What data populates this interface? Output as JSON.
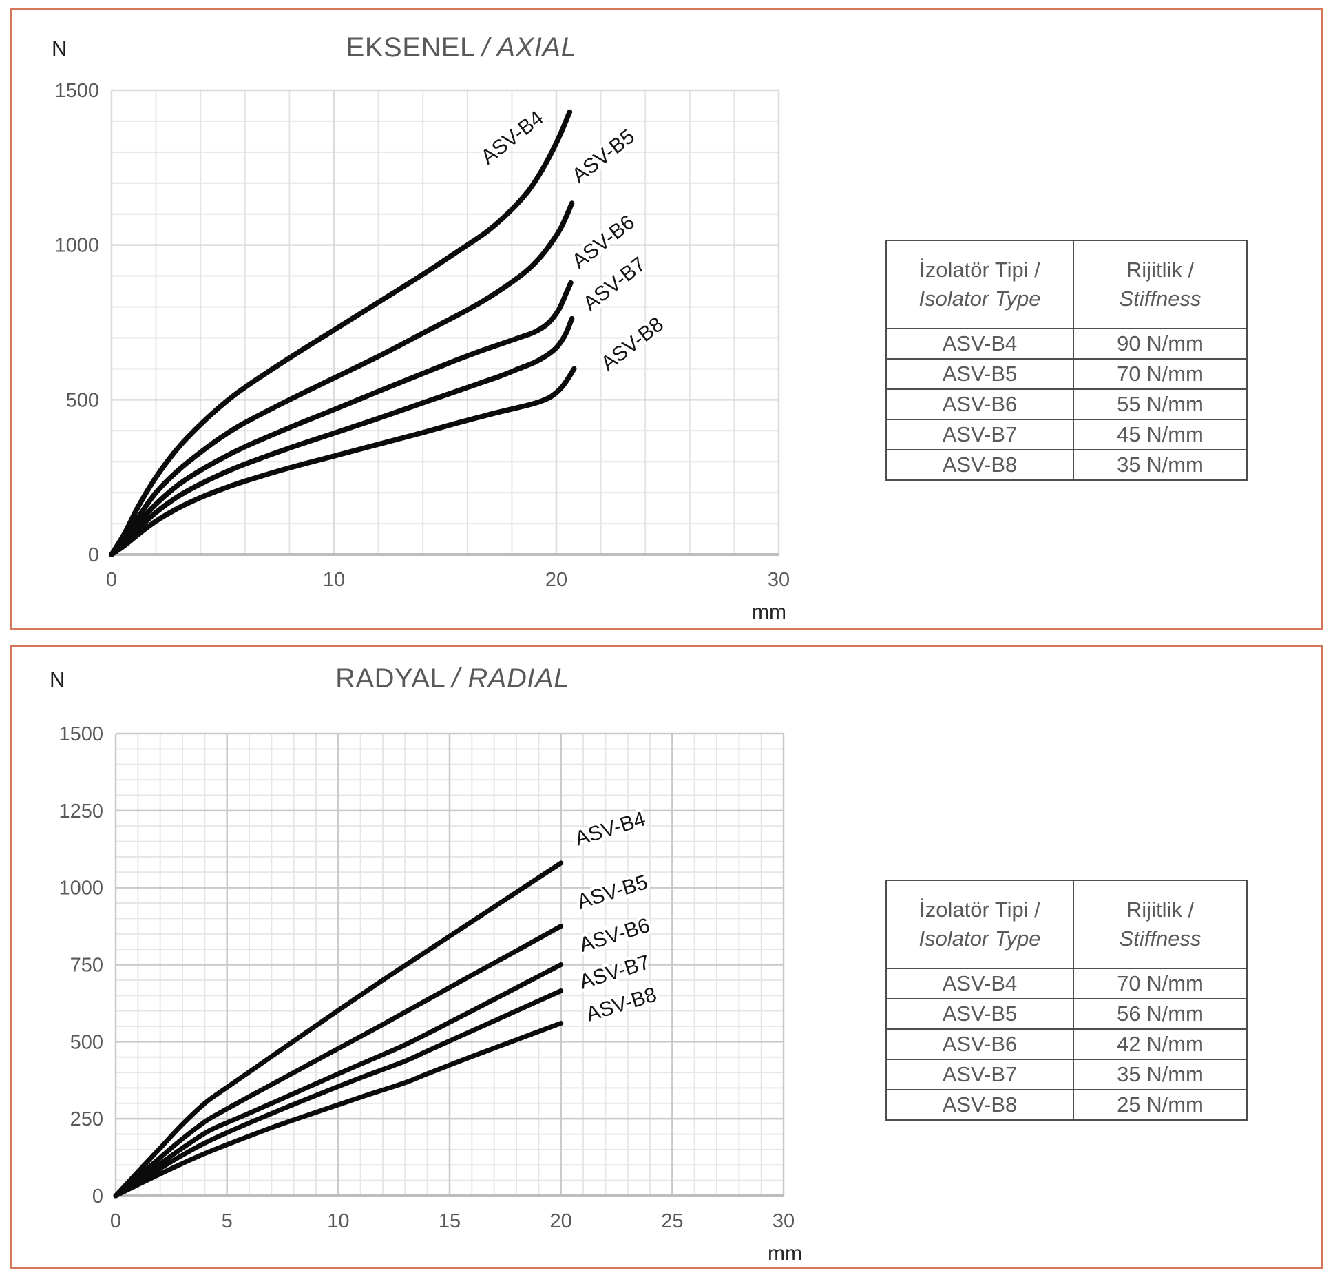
{
  "accent_border_color": "#D3765A",
  "text_gray": "#595959",
  "panels": [
    {
      "title_main": "EKSENEL",
      "title_italic": "/ AXIAL"
    },
    {
      "title_main": "RADYAL",
      "title_italic": "/ RADIAL"
    }
  ],
  "tables": [
    {
      "header": [
        {
          "line1": "İzolatör Tipi /",
          "line2": "Isolator Type"
        },
        {
          "line1": "Rijitlik /",
          "line2": "Stiffness"
        }
      ],
      "rows": [
        [
          "ASV-B4",
          "90 N/mm"
        ],
        [
          "ASV-B5",
          "70 N/mm"
        ],
        [
          "ASV-B6",
          "55 N/mm"
        ],
        [
          "ASV-B7",
          "45 N/mm"
        ],
        [
          "ASV-B8",
          "35 N/mm"
        ]
      ]
    },
    {
      "header": [
        {
          "line1": "İzolatör Tipi /",
          "line2": "Isolator Type"
        },
        {
          "line1": "Rijitlik /",
          "line2": "Stiffness"
        }
      ],
      "rows": [
        [
          "ASV-B4",
          "70 N/mm"
        ],
        [
          "ASV-B5",
          "56 N/mm"
        ],
        [
          "ASV-B6",
          "42 N/mm"
        ],
        [
          "ASV-B7",
          "35 N/mm"
        ],
        [
          "ASV-B8",
          "25 N/mm"
        ]
      ]
    }
  ],
  "chart_data": [
    {
      "type": "line",
      "title": "EKSENEL / AXIAL",
      "xlabel": "mm",
      "ylabel": "N",
      "xlim": [
        0,
        30
      ],
      "ylim": [
        0,
        1500
      ],
      "x_ticks": [
        0,
        10,
        20,
        30
      ],
      "y_ticks": [
        0,
        500,
        1000,
        1500
      ],
      "x_minor": 2,
      "y_minor": 100,
      "grid": true,
      "legend_position": "inline-labels",
      "series": [
        {
          "name": "ASV-B4",
          "points": [
            [
              0,
              0
            ],
            [
              0.6,
              70
            ],
            [
              1.2,
              155
            ],
            [
              2,
              250
            ],
            [
              3,
              345
            ],
            [
              4,
              420
            ],
            [
              5,
              485
            ],
            [
              6,
              540
            ],
            [
              8,
              635
            ],
            [
              10,
              725
            ],
            [
              12,
              815
            ],
            [
              14,
              905
            ],
            [
              16,
              1000
            ],
            [
              17,
              1050
            ],
            [
              18,
              1115
            ],
            [
              18.8,
              1180
            ],
            [
              19.5,
              1260
            ],
            [
              20.1,
              1345
            ],
            [
              20.6,
              1430
            ]
          ]
        },
        {
          "name": "ASV-B5",
          "points": [
            [
              0,
              0
            ],
            [
              0.6,
              55
            ],
            [
              1.2,
              120
            ],
            [
              2,
              200
            ],
            [
              3,
              272
            ],
            [
              4,
              330
            ],
            [
              5,
              382
            ],
            [
              6,
              426
            ],
            [
              8,
              500
            ],
            [
              10,
              570
            ],
            [
              12,
              640
            ],
            [
              14,
              715
            ],
            [
              16,
              790
            ],
            [
              17,
              832
            ],
            [
              18,
              880
            ],
            [
              18.8,
              925
            ],
            [
              19.5,
              980
            ],
            [
              20.2,
              1055
            ],
            [
              20.7,
              1135
            ]
          ]
        },
        {
          "name": "ASV-B6",
          "points": [
            [
              0,
              0
            ],
            [
              0.6,
              45
            ],
            [
              1.2,
              100
            ],
            [
              2,
              163
            ],
            [
              3,
              225
            ],
            [
              4,
              272
            ],
            [
              5,
              312
            ],
            [
              6,
              348
            ],
            [
              8,
              410
            ],
            [
              10,
              468
            ],
            [
              12,
              527
            ],
            [
              14,
              585
            ],
            [
              15.5,
              628
            ],
            [
              16.5,
              655
            ],
            [
              17.5,
              680
            ],
            [
              18.3,
              700
            ],
            [
              19,
              718
            ],
            [
              19.6,
              745
            ],
            [
              20.1,
              790
            ],
            [
              20.45,
              845
            ],
            [
              20.65,
              878
            ]
          ]
        },
        {
          "name": "ASV-B7",
          "points": [
            [
              0,
              0
            ],
            [
              0.6,
              38
            ],
            [
              1.2,
              82
            ],
            [
              2,
              136
            ],
            [
              3,
              188
            ],
            [
              4,
              228
            ],
            [
              5,
              262
            ],
            [
              6,
              292
            ],
            [
              8,
              344
            ],
            [
              10,
              392
            ],
            [
              12,
              440
            ],
            [
              14,
              490
            ],
            [
              15.5,
              527
            ],
            [
              16.5,
              552
            ],
            [
              17.5,
              577
            ],
            [
              18.3,
              600
            ],
            [
              19,
              620
            ],
            [
              19.5,
              640
            ],
            [
              20,
              668
            ],
            [
              20.4,
              710
            ],
            [
              20.7,
              762
            ]
          ]
        },
        {
          "name": "ASV-B8",
          "points": [
            [
              0,
              0
            ],
            [
              0.6,
              30
            ],
            [
              1.2,
              65
            ],
            [
              2,
              108
            ],
            [
              3,
              150
            ],
            [
              4,
              184
            ],
            [
              5,
              212
            ],
            [
              6,
              237
            ],
            [
              8,
              280
            ],
            [
              10,
              318
            ],
            [
              12,
              356
            ],
            [
              14,
              394
            ],
            [
              15.5,
              424
            ],
            [
              16.5,
              443
            ],
            [
              17.3,
              458
            ],
            [
              18,
              470
            ],
            [
              18.7,
              482
            ],
            [
              19.3,
              495
            ],
            [
              19.8,
              512
            ],
            [
              20.3,
              545
            ],
            [
              20.8,
              600
            ]
          ]
        }
      ],
      "labels": [
        {
          "text": "ASV-B4",
          "x": 18.2,
          "y": 1330,
          "angle": -38
        },
        {
          "text": "ASV-B5",
          "x": 22.3,
          "y": 1270,
          "angle": -38
        },
        {
          "text": "ASV-B6",
          "x": 22.3,
          "y": 993,
          "angle": -38
        },
        {
          "text": "ASV-B7",
          "x": 22.8,
          "y": 857,
          "angle": -38
        },
        {
          "text": "ASV-B8",
          "x": 23.6,
          "y": 663,
          "angle": -38
        }
      ]
    },
    {
      "type": "line",
      "title": "RADYAL / RADIAL",
      "xlabel": "mm",
      "ylabel": "N",
      "xlim": [
        0,
        30
      ],
      "ylim": [
        0,
        1500
      ],
      "x_ticks": [
        0,
        5,
        10,
        15,
        20,
        25,
        30
      ],
      "y_ticks": [
        0,
        250,
        500,
        750,
        1000,
        1250,
        1500
      ],
      "x_minor": 1,
      "y_minor": 50,
      "grid": true,
      "legend_position": "inline-labels",
      "series": [
        {
          "name": "ASV-B4",
          "points": [
            [
              0,
              0
            ],
            [
              1,
              78
            ],
            [
              2,
              155
            ],
            [
              3,
              232
            ],
            [
              4,
              300
            ],
            [
              4.6,
              332
            ],
            [
              6,
              402
            ],
            [
              8,
              502
            ],
            [
              10,
              602
            ],
            [
              12,
              700
            ],
            [
              14,
              795
            ],
            [
              16,
              890
            ],
            [
              18,
              985
            ],
            [
              20,
              1080
            ]
          ]
        },
        {
          "name": "ASV-B5",
          "points": [
            [
              0,
              0
            ],
            [
              1,
              62
            ],
            [
              2,
              124
            ],
            [
              3,
              185
            ],
            [
              4,
              240
            ],
            [
              4.6,
              266
            ],
            [
              6,
              322
            ],
            [
              8,
              400
            ],
            [
              10,
              478
            ],
            [
              12,
              556
            ],
            [
              14,
              636
            ],
            [
              16,
              716
            ],
            [
              18,
              795
            ],
            [
              20,
              875
            ]
          ]
        },
        {
          "name": "ASV-B6",
          "points": [
            [
              0,
              0
            ],
            [
              1,
              52
            ],
            [
              2,
              104
            ],
            [
              3,
              155
            ],
            [
              4,
              203
            ],
            [
              4.6,
              225
            ],
            [
              6,
              268
            ],
            [
              8,
              332
            ],
            [
              10,
              396
            ],
            [
              12,
              458
            ],
            [
              13,
              490
            ],
            [
              14,
              526
            ],
            [
              16,
              600
            ],
            [
              18,
              675
            ],
            [
              20,
              750
            ]
          ]
        },
        {
          "name": "ASV-B7",
          "points": [
            [
              0,
              0
            ],
            [
              1,
              45
            ],
            [
              2,
              89
            ],
            [
              3,
              132
            ],
            [
              4,
              171
            ],
            [
              5,
              205
            ],
            [
              7,
              267
            ],
            [
              9,
              326
            ],
            [
              11,
              383
            ],
            [
              13,
              437
            ],
            [
              14,
              470
            ],
            [
              16,
              535
            ],
            [
              18,
              600
            ],
            [
              20,
              665
            ]
          ]
        },
        {
          "name": "ASV-B8",
          "points": [
            [
              0,
              0
            ],
            [
              1,
              36
            ],
            [
              2,
              71
            ],
            [
              3,
              105
            ],
            [
              4,
              137
            ],
            [
              5,
              166
            ],
            [
              7,
              221
            ],
            [
              9,
              271
            ],
            [
              11,
              320
            ],
            [
              13,
              367
            ],
            [
              14,
              396
            ],
            [
              16,
              452
            ],
            [
              18,
              506
            ],
            [
              20,
              560
            ]
          ]
        }
      ],
      "labels": [
        {
          "text": "ASV-B4",
          "x": 22.3,
          "y": 1170,
          "angle": -17
        },
        {
          "text": "ASV-B5",
          "x": 22.4,
          "y": 965,
          "angle": -17
        },
        {
          "text": "ASV-B6",
          "x": 22.5,
          "y": 825,
          "angle": -17
        },
        {
          "text": "ASV-B7",
          "x": 22.5,
          "y": 705,
          "angle": -17
        },
        {
          "text": "ASV-B8",
          "x": 22.8,
          "y": 600,
          "angle": -17
        }
      ]
    }
  ]
}
